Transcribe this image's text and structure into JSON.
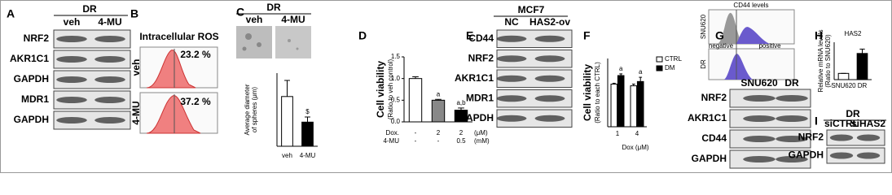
{
  "blots": {
    "A": {
      "label": "A",
      "header": "DR",
      "columns": [
        "veh",
        "4-MU"
      ],
      "rows": [
        "NRF2",
        "AKR1C1",
        "GAPDH",
        "MDR1",
        "GAPDH"
      ]
    },
    "E": {
      "label": "E",
      "header": "MCF7",
      "columns": [
        "NC",
        "HAS2-ov"
      ],
      "rows": [
        "CD44",
        "NRF2",
        "AKR1C1",
        "MDR1",
        "GAPDH"
      ]
    },
    "G": {
      "columns": [
        "SNU620",
        "DR"
      ],
      "rows": [
        "NRF2",
        "AKR1C1",
        "CD44",
        "GAPDH"
      ]
    },
    "I": {
      "label": "I",
      "header": "DR",
      "columns": [
        "siCTRL",
        "siHAS2"
      ],
      "rows": [
        "NRF2",
        "GAPDH"
      ]
    }
  },
  "ros": {
    "label": "B",
    "title": "Intracellular ROS",
    "rows": [
      "veh",
      "4-MU"
    ],
    "percents": [
      "23.2 %",
      "37.2 %"
    ]
  },
  "spheres": {
    "label": "C",
    "header": "DR",
    "columns": [
      "veh",
      "4-MU"
    ]
  },
  "flow": {
    "label": "G",
    "title": "CD44 levels",
    "rows": [
      "SNU620",
      "DR"
    ],
    "axis": [
      "negative",
      "positive"
    ]
  },
  "chart_data": [
    {
      "type": "bar",
      "y_label": "Average diameter",
      "y_label_sub": "of spheres (μm)",
      "categories": [
        "veh",
        "4-MU"
      ],
      "values": [
        68,
        33
      ],
      "errors": [
        22,
        7
      ],
      "colors": [
        "#ffffff",
        "#000000"
      ],
      "annotations": [
        null,
        "$"
      ],
      "ylim": [
        0,
        100
      ]
    },
    {
      "type": "bar",
      "panel": "D",
      "y_label": "Cell viability",
      "y_label_sub": "(Ratio to veh control)",
      "values": [
        1.0,
        0.5,
        0.27
      ],
      "errors": [
        0.04,
        0.02,
        0.05
      ],
      "colors": [
        "#ffffff",
        "#888888",
        "#000000"
      ],
      "annotations": [
        null,
        "a",
        "a,b"
      ],
      "ylim": [
        0,
        1.5
      ],
      "yticks": [
        {
          "value": 0,
          "label": "0.0"
        },
        0.5,
        {
          "value": 1,
          "label": "1.0"
        },
        1.5
      ],
      "conditions": [
        {
          "name": "Dox.",
          "values": [
            "-",
            "2",
            "2"
          ],
          "unit": "(μM)"
        },
        {
          "name": "4-MU",
          "values": [
            "-",
            "-",
            "0.5"
          ],
          "unit": "(mM)"
        }
      ]
    },
    {
      "type": "bar",
      "panel": "F",
      "y_label": "Cell viability",
      "y_label_sub": "(Ratio to each CTRL)",
      "categories": [
        "1",
        "4"
      ],
      "x_label": "Dox (μM)",
      "ylim": [
        0,
        0.8
      ],
      "series": [
        {
          "name": "CTRL",
          "color": "#ffffff",
          "values": [
            0.5,
            0.48
          ],
          "errors": [
            0.01,
            0.02
          ],
          "annotations": [
            null,
            null
          ]
        },
        {
          "name": "DM",
          "color": "#000000",
          "values": [
            0.6,
            0.53
          ],
          "errors": [
            0.02,
            0.05
          ],
          "annotations": [
            "a",
            "a"
          ]
        }
      ]
    },
    {
      "type": "bar",
      "panel": "H",
      "title": "HAS2",
      "y_label": "Relative mRNA levels",
      "y_label_sub": "(Ratio to SNU620)",
      "categories": [
        "SNU620",
        "DR"
      ],
      "values": [
        1,
        4.2
      ],
      "errors": [
        0,
        0.7
      ],
      "colors": [
        "#ffffff",
        "#000000"
      ],
      "annotations": [
        null,
        null
      ],
      "ylim": [
        0,
        6
      ]
    }
  ]
}
